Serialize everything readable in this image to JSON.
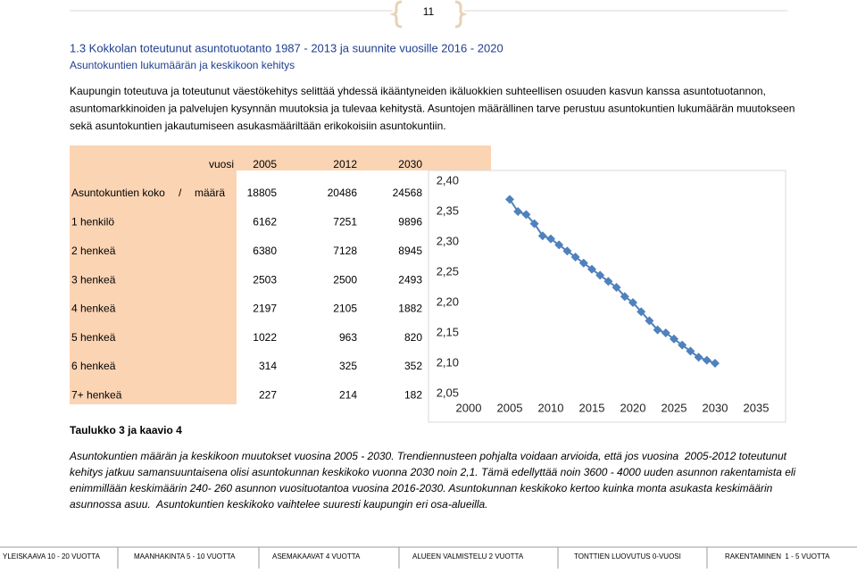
{
  "header": {
    "page_number": "11"
  },
  "section": {
    "title": "1.3 Kokkolan toteutunut asuntotuotanto 1987 - 2013 ja suunnite vuosille 2016 - 2020",
    "subtitle": "Asuntokuntien lukumäärän ja keskikoon kehitys"
  },
  "intro_lines": [
    "Kaupungin toteutuva ja toteutunut väestökehitys selittää yhdessä ikääntyneiden ikäluokkien suhteellisen osuuden kasvun kanssa asuntotuotannon,",
    "asuntomarkkinoiden ja palvelujen kysynnän muutoksia ja tulevaa kehitystä. Asuntojen määrällinen tarve perustuu asuntokuntien lukumäärän muutokseen",
    "sekä asuntokuntien jakautumiseen asukasmääriltään erikokoisiin asuntokuntiin."
  ],
  "table": {
    "header": [
      "vuosi",
      "2005",
      "2012",
      "2030"
    ],
    "size_label": [
      "Asuntokuntien koko",
      "/",
      "määrä"
    ],
    "size_values": [
      "18805",
      "20486",
      "24568"
    ],
    "rows": [
      {
        "label": "1 henkilö",
        "values": [
          "6162",
          "7251",
          "9896"
        ]
      },
      {
        "label": "2 henkeä",
        "values": [
          "6380",
          "7128",
          "8945"
        ]
      },
      {
        "label": "3 henkeä",
        "values": [
          "2503",
          "2500",
          "2493"
        ]
      },
      {
        "label": "4 henkeä",
        "values": [
          "2197",
          "2105",
          "1882"
        ]
      },
      {
        "label": "5 henkeä",
        "values": [
          "1022",
          "963",
          "820"
        ]
      },
      {
        "label": "6 henkeä",
        "values": [
          "314",
          "325",
          "352"
        ]
      },
      {
        "label": "7+ henkeä",
        "values": [
          "227",
          "214",
          "182"
        ]
      }
    ]
  },
  "chart_data": {
    "type": "line",
    "color": "#4f81bd",
    "x": [
      2005,
      2006,
      2007,
      2008,
      2009,
      2010,
      2011,
      2012,
      2013,
      2014,
      2015,
      2016,
      2017,
      2018,
      2019,
      2020,
      2021,
      2022,
      2023,
      2024,
      2025,
      2026,
      2027,
      2028,
      2029,
      2030
    ],
    "values": [
      2.37,
      2.35,
      2.345,
      2.33,
      2.31,
      2.305,
      2.295,
      2.285,
      2.275,
      2.265,
      2.255,
      2.245,
      2.235,
      2.225,
      2.21,
      2.2,
      2.185,
      2.17,
      2.155,
      2.15,
      2.14,
      2.13,
      2.12,
      2.11,
      2.105,
      2.1
    ],
    "xlim": [
      2000,
      2035
    ],
    "xticks": [
      2000,
      2005,
      2010,
      2015,
      2020,
      2025,
      2030,
      2035
    ],
    "ylim": [
      2.05,
      2.4
    ],
    "yticks": [
      {
        "value": 2.05,
        "label": "2,05"
      },
      {
        "value": 2.1,
        "label": "2,10"
      },
      {
        "value": 2.15,
        "label": "2,15"
      },
      {
        "value": 2.2,
        "label": "2,20"
      },
      {
        "value": 2.25,
        "label": "2,25"
      },
      {
        "value": 2.3,
        "label": "2,30"
      },
      {
        "value": 2.35,
        "label": "2,35"
      },
      {
        "value": 2.4,
        "label": "2,40"
      }
    ]
  },
  "caption": "Taulukko 3 ja kaavio 4",
  "closing_lines": [
    "Asuntokuntien määrän ja keskikoon muutokset vuosina 2005 - 2030. Trendiennusteen pohjalta voidaan arvioida, että jos vuosina  2005-2012 toteutunut",
    "kehitys jatkuu samansuuntaisena olisi asuntokunnan keskikoko vuonna 2030 noin 2,1. Tämä edellyttää noin 3600 - 4000 uuden asunnon rakentamista eli",
    "enimmillään keskimäärin 240- 260 asunnon vuosituotantoa vuosina 2016-2030. Asuntokunnan keskikoko kertoo kuinka monta asukasta keskimäärin",
    "asunnossa asuu.  Asuntokuntien keskikoko vaihtelee suuresti kaupungin eri osa-alueilla."
  ],
  "footer": [
    "YLEISKAAVA 10 - 20 VUOTTA",
    "MAANHAKINTA 5 - 10 VUOTTA",
    "ASEMAKAAVAT 4 VUOTTA",
    "ALUEEN VALMISTELU 2 VUOTTA",
    "TONTTIEN LUOVUTUS 0-VUOSI",
    "RAKENTAMINEN  1 - 5 VUOTTA"
  ]
}
